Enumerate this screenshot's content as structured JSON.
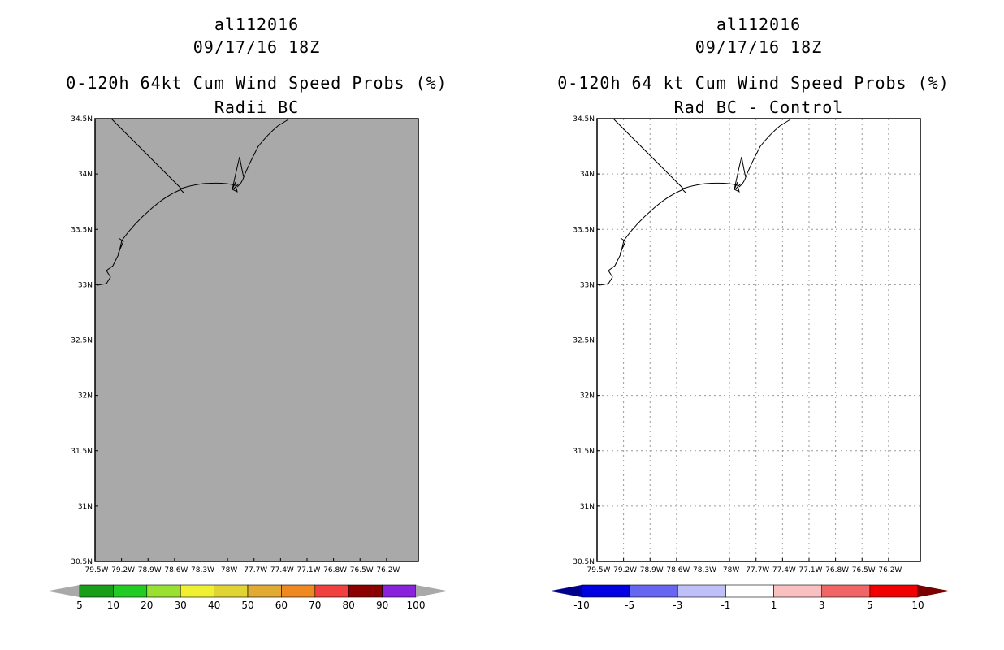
{
  "panels": [
    {
      "title_line1": "al112016",
      "title_line2": "09/17/16 18Z",
      "title_line3": "0-120h 64kt Cum Wind Speed Probs (%)",
      "title_line4": "Radii BC",
      "fill_color": "#a9a9a9",
      "grid": false,
      "colorbar": {
        "labels": [
          "5",
          "10",
          "20",
          "30",
          "40",
          "50",
          "60",
          "70",
          "80",
          "90",
          "100"
        ],
        "colors": [
          "#1a9e1a",
          "#22cc22",
          "#99e033",
          "#f0f033",
          "#e0d433",
          "#e0aa33",
          "#f08822",
          "#f04040",
          "#8b0000",
          "#8822dd"
        ],
        "under_color": "#a9a9a9",
        "over_color": "#a9a9a9"
      }
    },
    {
      "title_line1": "al112016",
      "title_line2": "09/17/16 18Z",
      "title_line3": "0-120h 64 kt Cum Wind Speed Probs (%)",
      "title_line4": "Rad BC - Control",
      "fill_color": "#ffffff",
      "grid": true,
      "colorbar": {
        "labels": [
          "-10",
          "-5",
          "-3",
          "-1",
          "1",
          "3",
          "5",
          "10"
        ],
        "colors": [
          "#0000e0",
          "#6666f0",
          "#c0c0f8",
          "#ffffff",
          "#f8c0c0",
          "#f06666",
          "#f00000"
        ],
        "under_color": "#00008b",
        "over_color": "#7a0000"
      }
    }
  ],
  "lat_labels": [
    "34.5N",
    "34N",
    "33.5N",
    "33N",
    "32.5N",
    "32N",
    "31.5N",
    "31N",
    "30.5N"
  ],
  "lon_labels": [
    "79.5W",
    "79.2W",
    "78.9W",
    "78.6W",
    "78.3W",
    "78W",
    "77.7W",
    "77.4W",
    "77.1W",
    "76.8W",
    "76.5W",
    "76.2W"
  ]
}
